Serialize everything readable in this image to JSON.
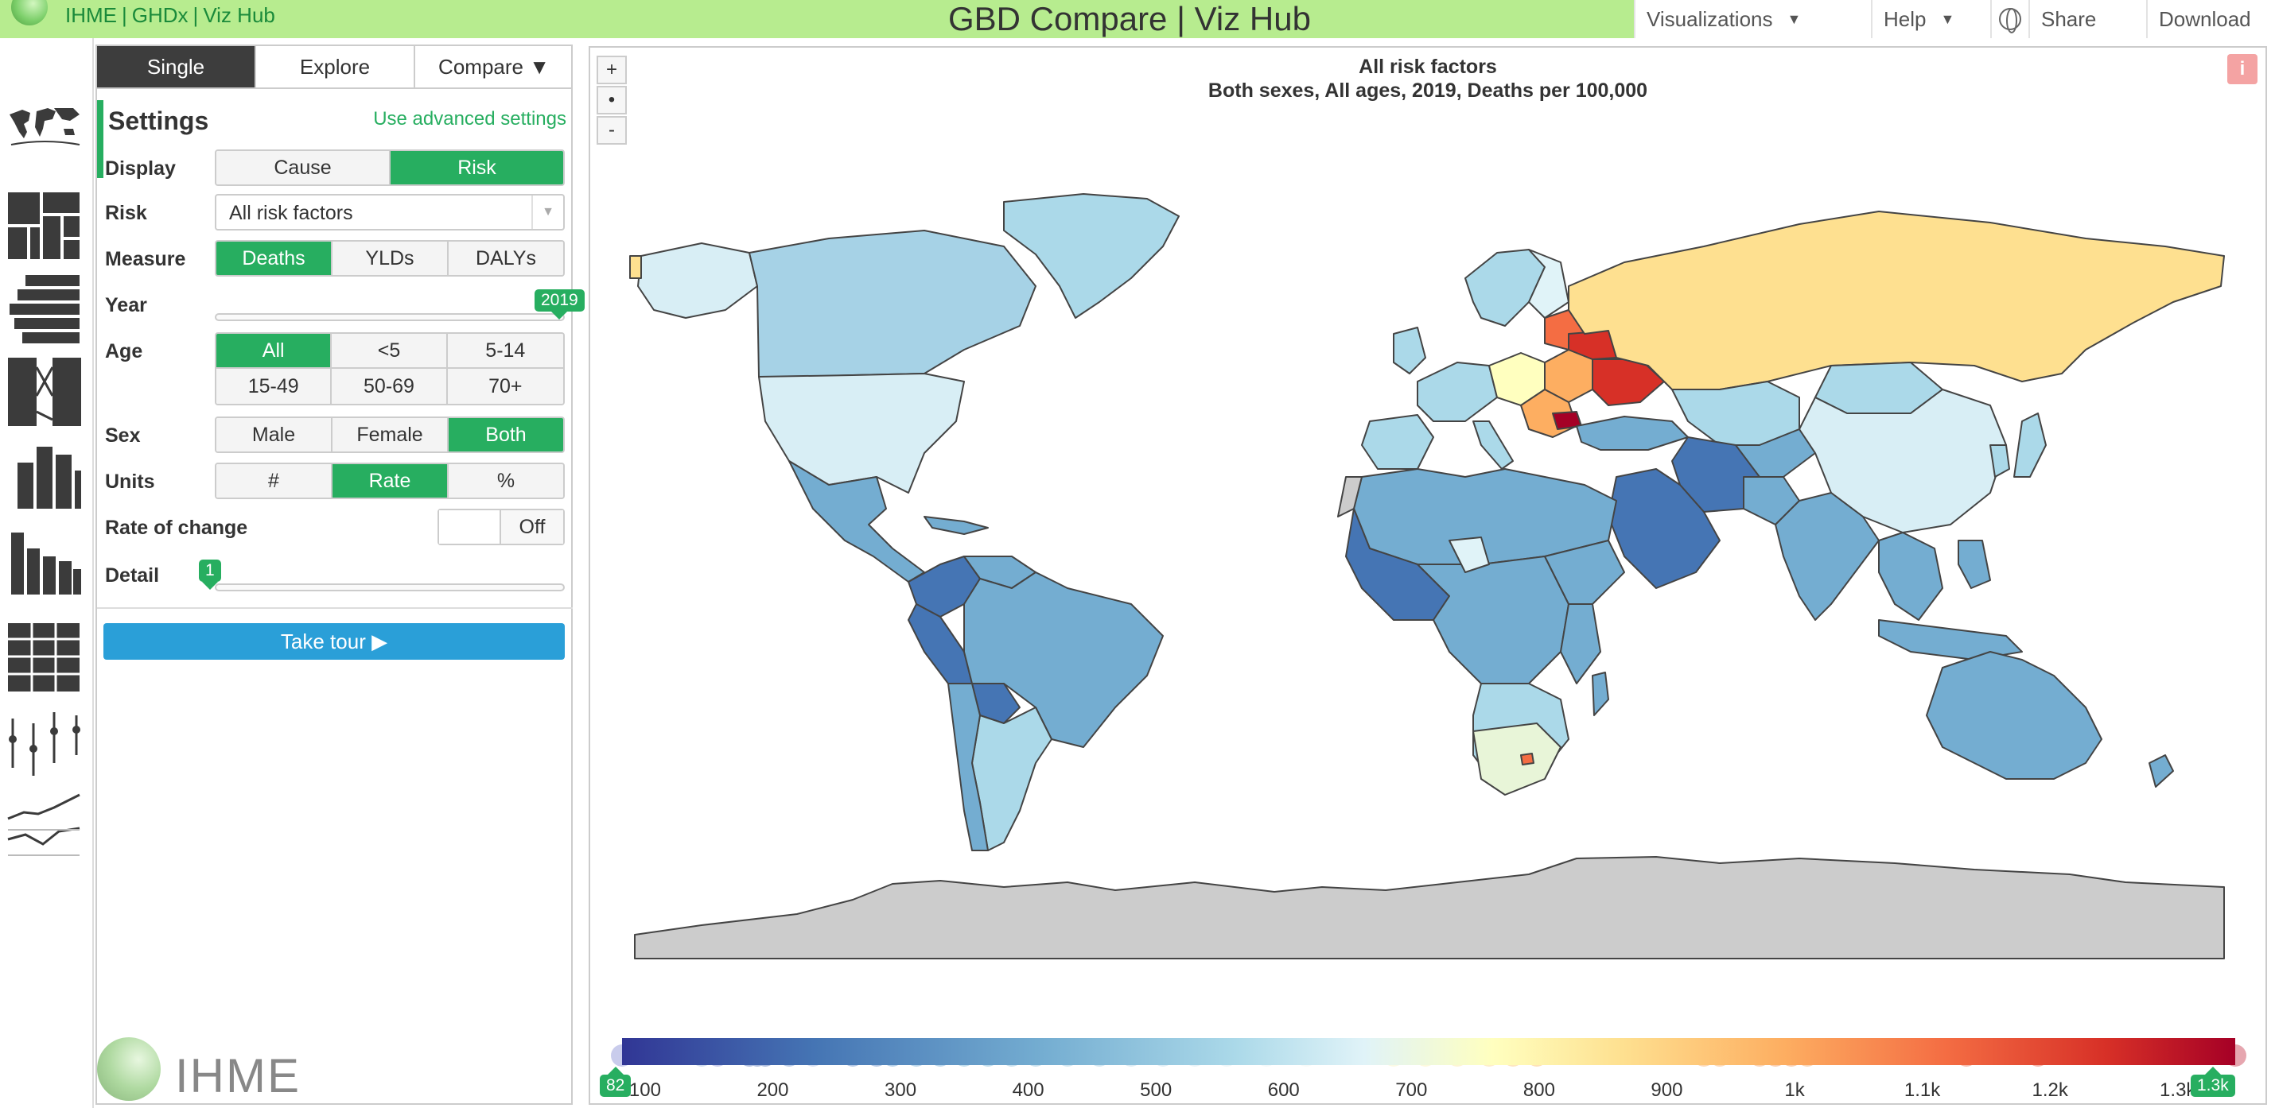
{
  "header": {
    "links": [
      "IHME",
      "GHDx",
      "Viz Hub"
    ],
    "title": "GBD Compare | Viz Hub",
    "nav": [
      {
        "label": "Visualizations",
        "has_caret": true
      },
      {
        "label": "Help",
        "has_caret": true
      },
      {
        "label": "Share",
        "icon": "globe-icon"
      },
      {
        "label": "Download"
      }
    ]
  },
  "sidebar": {
    "viz_icons": [
      "map-icon",
      "treemap-icon",
      "stacked-bar-icon",
      "arrow-diagram-icon",
      "stacked-column-icon",
      "pattern-icon",
      "heatmap-icon",
      "range-icon",
      "line-icon"
    ],
    "logo_text": "IHME"
  },
  "panel": {
    "tabs": [
      {
        "label": "Single",
        "active": true
      },
      {
        "label": "Explore",
        "active": false
      },
      {
        "label": "Compare ▼",
        "active": false
      }
    ],
    "settings_title": "Settings",
    "advanced_link": "Use advanced settings",
    "display": {
      "label": "Display",
      "options": [
        "Cause",
        "Risk"
      ],
      "selected": "Risk"
    },
    "risk": {
      "label": "Risk",
      "value": "All risk factors"
    },
    "measure": {
      "label": "Measure",
      "options": [
        "Deaths",
        "YLDs",
        "DALYs"
      ],
      "selected": "Deaths"
    },
    "year": {
      "label": "Year",
      "value": "2019",
      "position": 1.0
    },
    "age": {
      "label": "Age",
      "options": [
        "All",
        "<5",
        "5-14",
        "15-49",
        "50-69",
        "70+"
      ],
      "selected": "All"
    },
    "sex": {
      "label": "Sex",
      "options": [
        "Male",
        "Female",
        "Both"
      ],
      "selected": "Both"
    },
    "units": {
      "label": "Units",
      "options": [
        "#",
        "Rate",
        "%"
      ],
      "selected": "Rate"
    },
    "rate_of_change": {
      "label": "Rate of change",
      "state": "Off"
    },
    "detail": {
      "label": "Detail",
      "value": "1",
      "position": 0.0
    },
    "tour_button": "Take tour ▶"
  },
  "map": {
    "title": "All risk factors",
    "subtitle": "Both sexes, All ages, 2019, Deaths per 100,000",
    "zoom": {
      "in": "+",
      "reset": "•",
      "out": "-"
    },
    "info": "i",
    "legend": {
      "min_marker": "82",
      "max_marker": "1.3k",
      "ticks": [
        {
          "label": "100",
          "value": 100
        },
        {
          "label": "200",
          "value": 200
        },
        {
          "label": "300",
          "value": 300
        },
        {
          "label": "400",
          "value": 400
        },
        {
          "label": "500",
          "value": 500
        },
        {
          "label": "600",
          "value": 600
        },
        {
          "label": "700",
          "value": 700
        },
        {
          "label": "800",
          "value": 800
        },
        {
          "label": "900",
          "value": 900
        },
        {
          "label": "1k",
          "value": 1000
        },
        {
          "label": "1.1k",
          "value": 1100
        },
        {
          "label": "1.2k",
          "value": 1200
        },
        {
          "label": "1.3k",
          "value": 1300
        }
      ],
      "range": [
        82,
        1345
      ],
      "colors": [
        "#313695",
        "#4575b4",
        "#74add1",
        "#abd9e9",
        "#e0f3f8",
        "#ffffbf",
        "#fee090",
        "#fdae61",
        "#f46d43",
        "#d73027",
        "#a50026"
      ]
    }
  }
}
